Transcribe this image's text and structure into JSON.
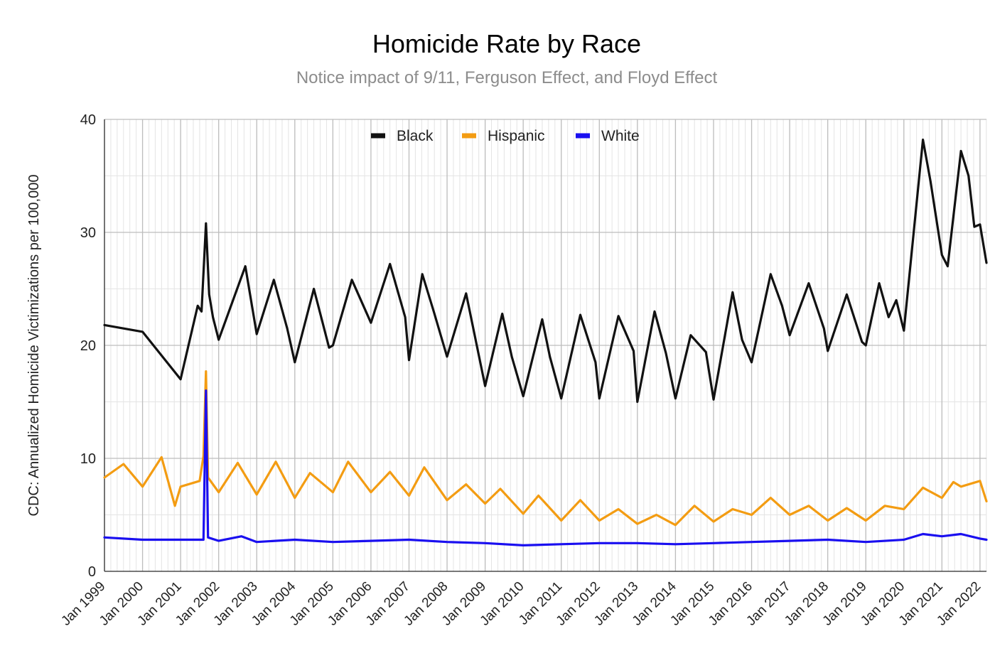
{
  "chart_data": {
    "type": "line",
    "title": "Homicide Rate by Race",
    "subtitle": "Notice impact of 9/11, Ferguson Effect, and Floyd Effect",
    "xlabel": "",
    "ylabel": "CDC: Annualized Homicide Victimizations per 100,000",
    "ylim": [
      0,
      40
    ],
    "yticks": [
      0,
      10,
      20,
      30,
      40
    ],
    "x_start": "Jan 1999",
    "x_end": "Mar 2022",
    "x_tick_labels": [
      "Jan 1999",
      "Jan 2000",
      "Jan 2001",
      "Jan 2002",
      "Jan 2003",
      "Jan 2004",
      "Jan 2005",
      "Jan 2006",
      "Jan 2007",
      "Jan 2008",
      "Jan 2009",
      "Jan 2010",
      "Jan 2011",
      "Jan 2012",
      "Jan 2013",
      "Jan 2014",
      "Jan 2015",
      "Jan 2016",
      "Jan 2017",
      "Jan 2018",
      "Jan 2019",
      "Jan 2020",
      "Jan 2021",
      "Jan 2022"
    ],
    "grid": true,
    "legend_position": "top-center",
    "series": [
      {
        "name": "Black",
        "color": "#111111",
        "values": [
          [
            1999,
            21.8
          ],
          [
            2000,
            21.2
          ],
          [
            2001,
            17.0
          ],
          [
            2001.45,
            23.5
          ],
          [
            2001.55,
            23.0
          ],
          [
            2001.667,
            30.8
          ],
          [
            2001.75,
            24.5
          ],
          [
            2001.85,
            22.5
          ],
          [
            2002,
            20.5
          ],
          [
            2002.7,
            27.0
          ],
          [
            2003,
            21.0
          ],
          [
            2003.45,
            25.8
          ],
          [
            2003.8,
            21.5
          ],
          [
            2004,
            18.5
          ],
          [
            2004.5,
            25.0
          ],
          [
            2004.9,
            19.8
          ],
          [
            2005,
            20.0
          ],
          [
            2005.5,
            25.8
          ],
          [
            2006,
            22.0
          ],
          [
            2006.5,
            27.2
          ],
          [
            2006.9,
            22.5
          ],
          [
            2007,
            18.7
          ],
          [
            2007.35,
            26.3
          ],
          [
            2007.65,
            23.0
          ],
          [
            2008,
            19.0
          ],
          [
            2008.5,
            24.6
          ],
          [
            2009,
            16.4
          ],
          [
            2009.45,
            22.8
          ],
          [
            2009.7,
            19.0
          ],
          [
            2010,
            15.5
          ],
          [
            2010.5,
            22.3
          ],
          [
            2010.7,
            19.0
          ],
          [
            2011,
            15.3
          ],
          [
            2011.5,
            22.7
          ],
          [
            2011.9,
            18.5
          ],
          [
            2012,
            15.3
          ],
          [
            2012.5,
            22.6
          ],
          [
            2012.9,
            19.5
          ],
          [
            2013,
            15.0
          ],
          [
            2013.45,
            23.0
          ],
          [
            2013.75,
            19.3
          ],
          [
            2014,
            15.3
          ],
          [
            2014.4,
            20.9
          ],
          [
            2014.8,
            19.4
          ],
          [
            2015,
            15.2
          ],
          [
            2015.5,
            24.7
          ],
          [
            2015.75,
            20.5
          ],
          [
            2016,
            18.5
          ],
          [
            2016.5,
            26.3
          ],
          [
            2016.8,
            23.5
          ],
          [
            2017,
            20.9
          ],
          [
            2017.5,
            25.5
          ],
          [
            2017.9,
            21.5
          ],
          [
            2018,
            19.5
          ],
          [
            2018.5,
            24.5
          ],
          [
            2018.9,
            20.3
          ],
          [
            2019,
            20.0
          ],
          [
            2019.35,
            25.5
          ],
          [
            2019.6,
            22.5
          ],
          [
            2019.8,
            24.0
          ],
          [
            2020,
            21.3
          ],
          [
            2020.5,
            38.2
          ],
          [
            2020.7,
            34.5
          ],
          [
            2021,
            28.0
          ],
          [
            2021.15,
            27.0
          ],
          [
            2021.5,
            37.2
          ],
          [
            2021.7,
            35.0
          ],
          [
            2021.85,
            30.5
          ],
          [
            2022.0,
            30.7
          ],
          [
            2022.17,
            27.3
          ]
        ]
      },
      {
        "name": "Hispanic",
        "color": "#f39c12",
        "values": [
          [
            1999,
            8.3
          ],
          [
            1999.5,
            9.5
          ],
          [
            2000,
            7.5
          ],
          [
            2000.5,
            10.1
          ],
          [
            2000.85,
            5.8
          ],
          [
            2001,
            7.5
          ],
          [
            2001.5,
            8.0
          ],
          [
            2001.6,
            10.2
          ],
          [
            2001.667,
            17.7
          ],
          [
            2001.72,
            8.3
          ],
          [
            2002,
            7.0
          ],
          [
            2002.5,
            9.6
          ],
          [
            2003,
            6.8
          ],
          [
            2003.5,
            9.7
          ],
          [
            2004,
            6.5
          ],
          [
            2004.4,
            8.7
          ],
          [
            2005,
            7.0
          ],
          [
            2005.4,
            9.7
          ],
          [
            2006,
            7.0
          ],
          [
            2006.5,
            8.8
          ],
          [
            2007,
            6.7
          ],
          [
            2007.4,
            9.2
          ],
          [
            2008,
            6.3
          ],
          [
            2008.5,
            7.7
          ],
          [
            2009,
            6.0
          ],
          [
            2009.4,
            7.3
          ],
          [
            2010,
            5.1
          ],
          [
            2010.4,
            6.7
          ],
          [
            2011,
            4.5
          ],
          [
            2011.5,
            6.3
          ],
          [
            2012,
            4.5
          ],
          [
            2012.5,
            5.5
          ],
          [
            2013,
            4.2
          ],
          [
            2013.5,
            5.0
          ],
          [
            2014,
            4.1
          ],
          [
            2014.5,
            5.8
          ],
          [
            2015,
            4.4
          ],
          [
            2015.5,
            5.5
          ],
          [
            2016,
            5.0
          ],
          [
            2016.5,
            6.5
          ],
          [
            2017,
            5.0
          ],
          [
            2017.5,
            5.8
          ],
          [
            2018,
            4.5
          ],
          [
            2018.5,
            5.6
          ],
          [
            2019,
            4.5
          ],
          [
            2019.5,
            5.8
          ],
          [
            2020,
            5.5
          ],
          [
            2020.5,
            7.4
          ],
          [
            2021,
            6.5
          ],
          [
            2021.3,
            7.9
          ],
          [
            2021.5,
            7.5
          ],
          [
            2022,
            8.0
          ],
          [
            2022.17,
            6.2
          ]
        ]
      },
      {
        "name": "White",
        "color": "#1a0ff0",
        "values": [
          [
            1999,
            3.0
          ],
          [
            2000,
            2.8
          ],
          [
            2001,
            2.8
          ],
          [
            2001.6,
            2.8
          ],
          [
            2001.667,
            16.0
          ],
          [
            2001.72,
            3.0
          ],
          [
            2002,
            2.7
          ],
          [
            2002.6,
            3.1
          ],
          [
            2003,
            2.6
          ],
          [
            2004,
            2.8
          ],
          [
            2005,
            2.6
          ],
          [
            2006,
            2.7
          ],
          [
            2007,
            2.8
          ],
          [
            2008,
            2.6
          ],
          [
            2009,
            2.5
          ],
          [
            2010,
            2.3
          ],
          [
            2011,
            2.4
          ],
          [
            2012,
            2.5
          ],
          [
            2013,
            2.5
          ],
          [
            2014,
            2.4
          ],
          [
            2015,
            2.5
          ],
          [
            2016,
            2.6
          ],
          [
            2017,
            2.7
          ],
          [
            2018,
            2.8
          ],
          [
            2019,
            2.6
          ],
          [
            2020,
            2.8
          ],
          [
            2020.5,
            3.3
          ],
          [
            2021,
            3.1
          ],
          [
            2021.5,
            3.3
          ],
          [
            2022,
            2.9
          ],
          [
            2022.17,
            2.8
          ]
        ]
      }
    ]
  }
}
